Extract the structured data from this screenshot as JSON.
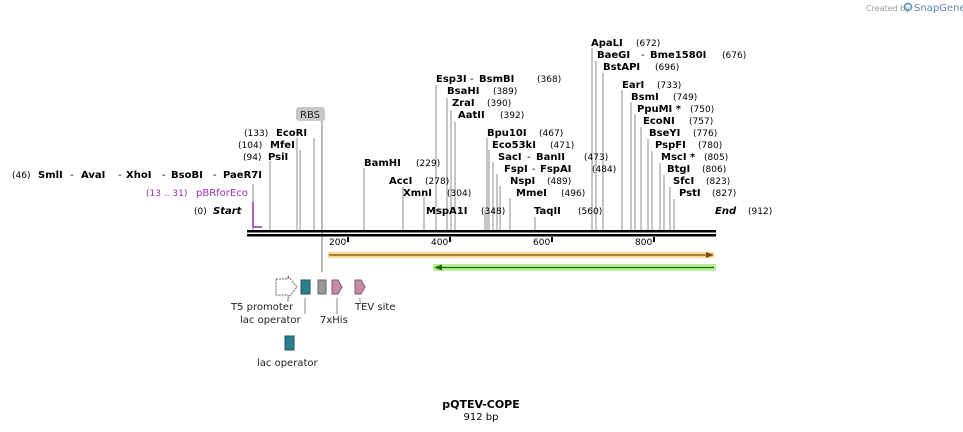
{
  "watermark": {
    "created_by": "Created by",
    "brand": "SnapGene"
  },
  "map": {
    "title": "pQTEV-COPE",
    "length_label": "912 bp",
    "start_label": "Start",
    "start_pos": "(0)",
    "end_label": "End",
    "end_pos": "(912)",
    "ticks": [
      "200",
      "400",
      "600",
      "800"
    ]
  },
  "enzymes": [
    {
      "name": "SmlI",
      "pos": "(46)"
    },
    {
      "name": "AvaI",
      "pos": ""
    },
    {
      "name": "XhoI",
      "pos": ""
    },
    {
      "name": "BsoBI",
      "pos": ""
    },
    {
      "name": "PaeR7I",
      "pos": ""
    },
    {
      "name": "PsiI",
      "pos": "(94)"
    },
    {
      "name": "MfeI",
      "pos": "(104)"
    },
    {
      "name": "EcoRI",
      "pos": "(133)"
    },
    {
      "name": "BamHI",
      "pos": "(229)"
    },
    {
      "name": "AccI",
      "pos": "(278)"
    },
    {
      "name": "XmnI",
      "pos": "(304)"
    },
    {
      "name": "MspA1I",
      "pos": "(348)"
    },
    {
      "name": "Esp3I",
      "pos": ""
    },
    {
      "name": "BsmBI",
      "pos": "(368)"
    },
    {
      "name": "BsaHI",
      "pos": "(389)"
    },
    {
      "name": "ZraI",
      "pos": "(390)"
    },
    {
      "name": "AatII",
      "pos": "(392)"
    },
    {
      "name": "Bpu10I",
      "pos": "(467)"
    },
    {
      "name": "Eco53kI",
      "pos": "(471)"
    },
    {
      "name": "SacI",
      "pos": ""
    },
    {
      "name": "BanII",
      "pos": "(473)"
    },
    {
      "name": "FspI",
      "pos": ""
    },
    {
      "name": "FspAI",
      "pos": "(484)"
    },
    {
      "name": "NspI",
      "pos": "(489)"
    },
    {
      "name": "MmeI",
      "pos": "(496)"
    },
    {
      "name": "TaqII",
      "pos": "(560)"
    },
    {
      "name": "ApaLI",
      "pos": "(672)"
    },
    {
      "name": "BaeGI",
      "pos": ""
    },
    {
      "name": "Bme1580I",
      "pos": "(676)"
    },
    {
      "name": "BstAPI",
      "pos": "(696)"
    },
    {
      "name": "EarI",
      "pos": "(733)"
    },
    {
      "name": "BsmI",
      "pos": "(749)"
    },
    {
      "name": "PpuMI *",
      "pos": "(750)"
    },
    {
      "name": "EcoNI",
      "pos": "(757)"
    },
    {
      "name": "BseYI",
      "pos": "(776)"
    },
    {
      "name": "PspFI",
      "pos": "(780)"
    },
    {
      "name": "MscI *",
      "pos": "(805)"
    },
    {
      "name": "BtgI",
      "pos": "(806)"
    },
    {
      "name": "SfcI",
      "pos": "(823)"
    },
    {
      "name": "PstI",
      "pos": "(827)"
    }
  ],
  "primer": {
    "name": "pBRforEco",
    "range": "(13 .. 31)"
  },
  "features": {
    "rbs": "RBS",
    "t5": "T5 promoter",
    "lac1": "lac operator",
    "his": "7xHis",
    "tev": "TEV site",
    "lac2": "lac operator"
  },
  "colors": {
    "primer": "#9b2fae",
    "orange_bar": "#f5a623",
    "green_bar": "#7ed957",
    "lac_box": "#2a7f8f",
    "pink": "#c58ba5",
    "rbs_bg": "#c8c8c8"
  }
}
